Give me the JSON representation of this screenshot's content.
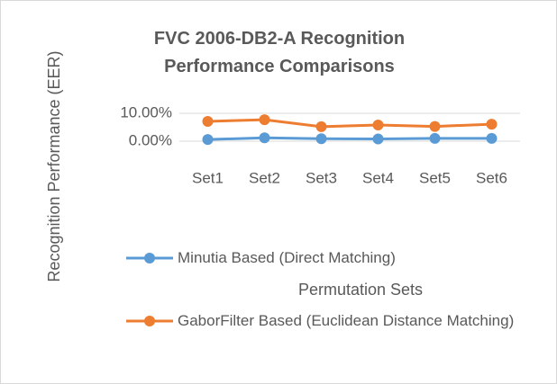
{
  "chart_data": {
    "type": "line",
    "title": "FVC 2006-DB2-A Recognition Performance Comparisons",
    "x_label": "Permutation Sets",
    "y_label": "Recognition Performance (EER)",
    "categories": [
      "Set1",
      "Set2",
      "Set3",
      "Set4",
      "Set5",
      "Set6"
    ],
    "series": [
      {
        "name": "Minutia Based (Direct Matching)",
        "color": "#5b9bd5",
        "values": [
          0.6,
          1.2,
          0.9,
          0.8,
          1.0,
          1.0
        ]
      },
      {
        "name": "GaborFilter Based (Euclidean Distance Matching)",
        "color": "#ed7d31",
        "values": [
          7.1,
          7.7,
          5.2,
          5.8,
          5.3,
          6.1
        ]
      }
    ],
    "ylim": [
      0,
      10
    ],
    "yticks": [
      {
        "value": 0,
        "label": "0.00%"
      },
      {
        "value": 10,
        "label": "10.00%"
      }
    ],
    "grid": true
  }
}
